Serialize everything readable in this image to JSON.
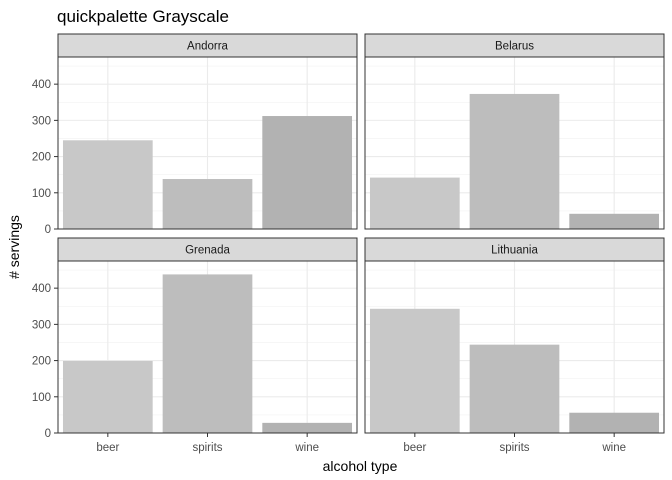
{
  "chart_data": {
    "type": "bar",
    "title": "quickpalette Grayscale",
    "xlabel": "alcohol type",
    "ylabel": "# servings",
    "categories": [
      "beer",
      "spirits",
      "wine"
    ],
    "ylim": [
      0,
      475
    ],
    "yticks": [
      0,
      100,
      200,
      300,
      400
    ],
    "grid": true,
    "bar_colors": [
      "#c8c8c8",
      "#bdbdbd",
      "#b2b2b2"
    ],
    "panels": [
      {
        "name": "Andorra",
        "values": [
          245,
          138,
          312
        ]
      },
      {
        "name": "Belarus",
        "values": [
          142,
          373,
          42
        ]
      },
      {
        "name": "Grenada",
        "values": [
          199,
          438,
          28
        ]
      },
      {
        "name": "Lithuania",
        "values": [
          343,
          244,
          56
        ]
      }
    ]
  }
}
